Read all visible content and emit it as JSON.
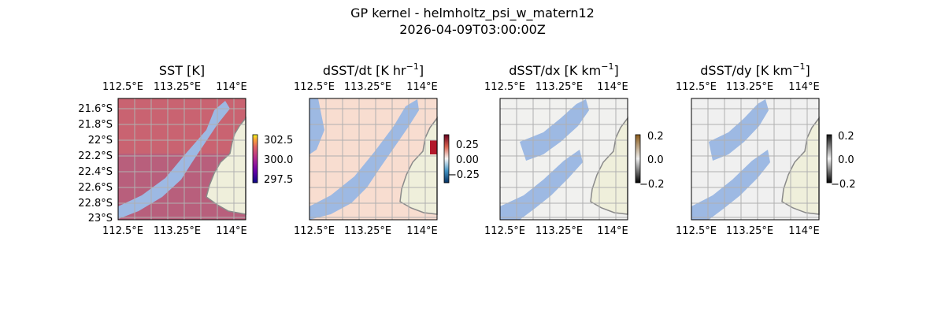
{
  "figure": {
    "title": "GP kernel - helmholtz_psi_w_matern12",
    "subtitle": "2026-04-09T03:00:00Z"
  },
  "colors": {
    "land": "#efefdb",
    "coast": "#8a8a8a",
    "missing": "#9db9e3",
    "grid": "#b0b0b0"
  },
  "chart_data": [
    {
      "type": "heatmap",
      "title": "SST [K]",
      "colormap": "plasma",
      "x_ticks": [
        "112.5°E",
        "113.25°E",
        "114°E"
      ],
      "y_ticks": [
        "21.6°S",
        "21.8°S",
        "22°S",
        "22.2°S",
        "22.4°S",
        "22.6°S",
        "22.8°S",
        "23°S"
      ],
      "colorbar_ticks": [
        "302.5",
        "300.0",
        "297.5"
      ],
      "colorbar_range": [
        297,
        303.5
      ]
    },
    {
      "type": "heatmap",
      "title": "dSST/dt [K hr",
      "title_sup": "−1",
      "title_end": "]",
      "colormap": "RdBu_r",
      "x_ticks": [
        "112.5°E",
        "113.25°E",
        "114°E"
      ],
      "colorbar_ticks": [
        "0.25",
        "0.00",
        "−0.25"
      ],
      "colorbar_range": [
        -0.35,
        0.35
      ]
    },
    {
      "type": "heatmap",
      "title": "dSST/dx [K km",
      "title_sup": "−1",
      "title_end": "]",
      "colormap": "gray-orange",
      "x_ticks": [
        "112.5°E",
        "113.25°E",
        "114°E"
      ],
      "colorbar_ticks": [
        "0.2",
        "0.0",
        "−0.2"
      ],
      "colorbar_range": [
        -0.2,
        0.2
      ]
    },
    {
      "type": "heatmap",
      "title": "dSST/dy [K km",
      "title_sup": "−1",
      "title_end": "]",
      "colormap": "gray",
      "x_ticks": [
        "112.5°E",
        "113.25°E",
        "114°E"
      ],
      "colorbar_ticks": [
        "0.2",
        "0.0",
        "−0.2"
      ],
      "colorbar_range": [
        -0.2,
        0.2
      ]
    }
  ]
}
